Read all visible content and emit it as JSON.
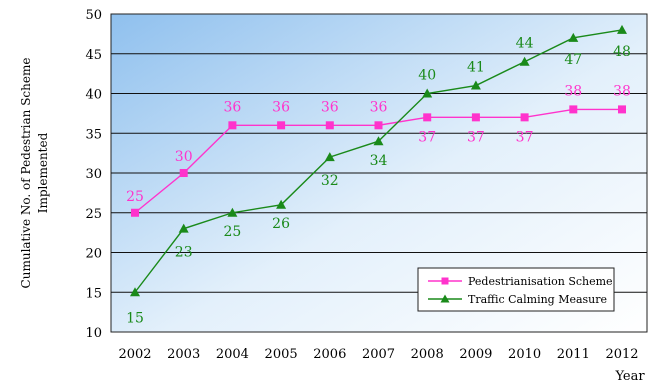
{
  "chart_data": {
    "type": "line",
    "title": "",
    "xlabel": "Year",
    "ylabel_lines": [
      "Cumulative No. of Pedestrian Scheme",
      "Implemented"
    ],
    "x": [
      "2002",
      "2003",
      "2004",
      "2005",
      "2006",
      "2007",
      "2008",
      "2009",
      "2010",
      "2011",
      "2012"
    ],
    "ylim": [
      10,
      50
    ],
    "yticks": [
      "10",
      "15",
      "20",
      "25",
      "30",
      "35",
      "40",
      "45",
      "50"
    ],
    "grid": true,
    "legend_position": "bottom-right",
    "series": [
      {
        "name": "Pedestrianisation Scheme",
        "color": "#ff33cc",
        "marker": "square",
        "values": [
          25,
          30,
          36,
          36,
          36,
          36,
          37,
          37,
          37,
          38,
          38
        ],
        "labels": [
          "25",
          "30",
          "36",
          "36",
          "36",
          "36",
          "37",
          "37",
          "37",
          "38",
          "38"
        ]
      },
      {
        "name": "Traffic Calming Measure",
        "color": "#1a8a1a",
        "marker": "triangle",
        "values": [
          15,
          23,
          25,
          26,
          32,
          34,
          40,
          41,
          44,
          47,
          48
        ],
        "labels": [
          "15",
          "23",
          "25",
          "26",
          "32",
          "34",
          "40",
          "41",
          "44",
          "47",
          "48"
        ]
      }
    ]
  }
}
